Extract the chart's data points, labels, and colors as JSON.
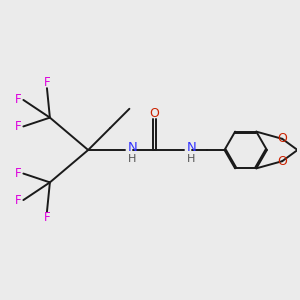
{
  "background_color": "#ebebeb",
  "bond_color": "#1a1a1a",
  "N_color": "#3333ff",
  "O_color": "#cc2200",
  "F_color": "#dd00dd",
  "H_color": "#555555",
  "figsize": [
    3.0,
    3.0
  ],
  "dpi": 100,
  "xlim": [
    0,
    10
  ],
  "ylim": [
    2.0,
    8.0
  ]
}
